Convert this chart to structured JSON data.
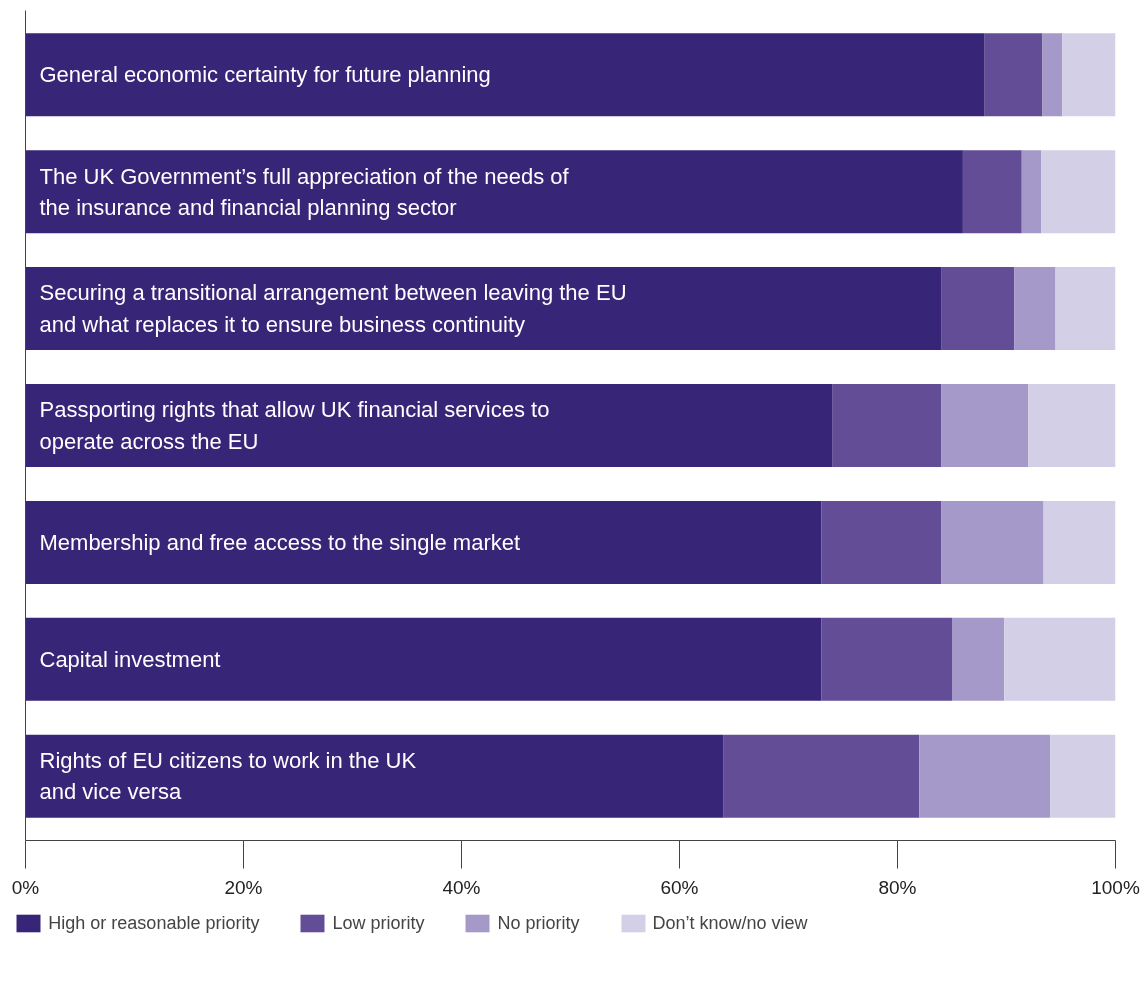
{
  "chart_data": {
    "type": "bar",
    "orientation": "horizontal",
    "stacked": true,
    "categories": [
      "General economic certainty for future planning",
      "The UK Government’s full appreciation of the needs of\nthe insurance and financial planning sector",
      "Securing a transitional arrangement between leaving the EU\nand what replaces it to ensure business continuity",
      "Passporting rights that allow UK financial services to\noperate across the EU",
      "Membership and free access to the single market",
      "Capital investment",
      "Rights of EU citizens to work in the UK\nand vice versa"
    ],
    "series": [
      {
        "name": "High or reasonable priority",
        "color": "#372578",
        "values": [
          88,
          86,
          84,
          74,
          73,
          73,
          64
        ]
      },
      {
        "name": "Low priority",
        "color": "#634d96",
        "values": [
          5.3,
          5.4,
          6.7,
          10,
          11,
          12,
          18
        ]
      },
      {
        "name": "No priority",
        "color": "#a499c8",
        "values": [
          1.8,
          1.8,
          3.8,
          8,
          9.4,
          4.8,
          12
        ]
      },
      {
        "name": "Don’t know/no view",
        "color": "#d3cfe6",
        "values": [
          4.9,
          6.8,
          5.5,
          8,
          6.6,
          10.2,
          6
        ]
      }
    ],
    "xlim": [
      0,
      100
    ],
    "xticks": [
      {
        "value": 0,
        "label": "0%"
      },
      {
        "value": 20,
        "label": "20%"
      },
      {
        "value": 40,
        "label": "40%"
      },
      {
        "value": 60,
        "label": "60%"
      },
      {
        "value": 80,
        "label": "80%"
      },
      {
        "value": 100,
        "label": "100%"
      }
    ],
    "tick_labels": "x",
    "grid": false,
    "legend": "bottom"
  }
}
